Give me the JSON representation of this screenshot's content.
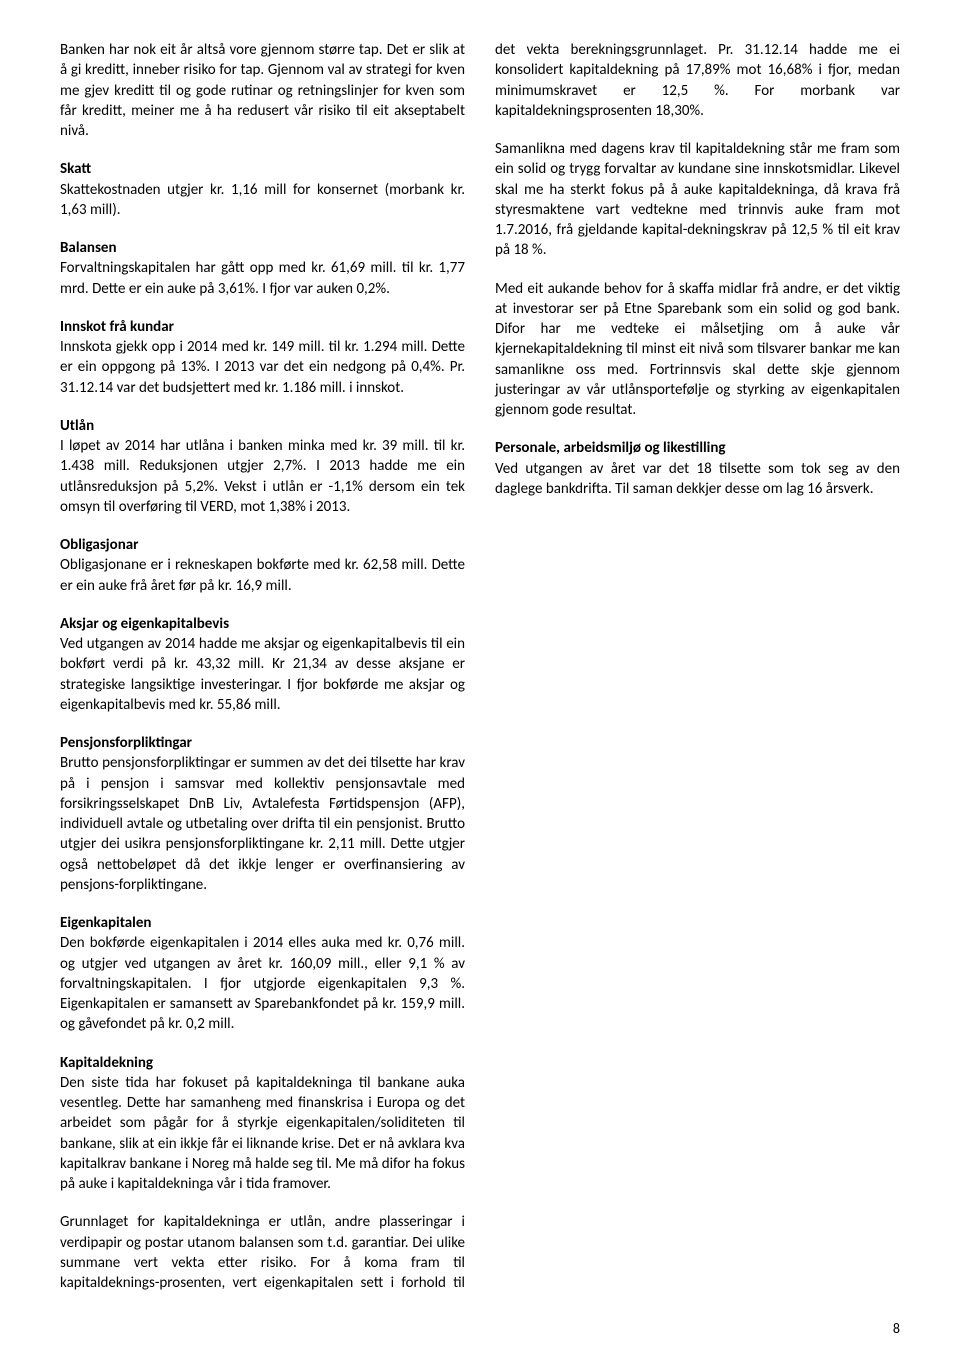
{
  "page_number": "8",
  "sections": {
    "intro": "Banken har nok eit år altså vore gjennom større tap. Det er slik at å gi kreditt, inneber risiko for tap. Gjennom val av strategi for kven me gjev kreditt til og gode rutinar og retningslinjer for kven som får kreditt, meiner me å ha redusert vår risiko til eit akseptabelt nivå.",
    "skatt_h": "Skatt",
    "skatt": "Skattekostnaden utgjer kr. 1,16 mill for konsernet (morbank kr. 1,63 mill).",
    "balansen_h": "Balansen",
    "balansen": "Forvaltningskapitalen har gått opp med kr. 61,69 mill. til kr. 1,77 mrd. Dette er ein auke på 3,61%. I fjor var auken 0,2%.",
    "innskot_h": "Innskot frå kundar",
    "innskot": "Innskota gjekk opp i 2014 med kr. 149 mill. til kr. 1.294 mill. Dette er ein oppgong på 13%. I 2013 var det ein nedgong på 0,4%. Pr. 31.12.14 var det budsjettert med kr. 1.186 mill. i innskot.",
    "utlan_h": "Utlån",
    "utlan": "I løpet av 2014 har utlåna i banken minka med kr. 39 mill. til kr. 1.438 mill. Reduksjonen utgjer 2,7%. I 2013 hadde me ein utlånsreduksjon på 5,2%. Vekst i utlån er -1,1% dersom ein tek omsyn til overføring til VERD, mot 1,38% i 2013.",
    "oblig_h": "Obligasjonar",
    "oblig": "Obligasjonane er i rekneskapen bokførte med kr. 62,58 mill. Dette er ein auke frå året før på kr. 16,9 mill.",
    "aksjar_h": "Aksjar og eigenkapitalbevis",
    "aksjar": "Ved utgangen av 2014 hadde me aksjar og eigenkapitalbevis til ein bokført verdi på kr. 43,32 mill. Kr 21,34 av desse aksjane er strategiske langsiktige investeringar. I fjor bokførde me aksjar og eigenkapitalbevis med kr. 55,86 mill.",
    "pensjon_h": "Pensjonsforpliktingar",
    "pensjon": "Brutto pensjonsforpliktingar er summen av det dei tilsette har krav på i pensjon i samsvar med kollektiv pensjonsavtale med forsikringsselskapet DnB Liv, Avtalefesta Førtidspensjon (AFP), individuell avtale og utbetaling over drifta til ein pensjonist. Brutto utgjer dei usikra pensjonsforpliktingane kr. 2,11 mill. Dette utgjer også nettobeløpet då det ikkje lenger er overfinansiering av pensjons-forpliktingane.",
    "eigen_h": "Eigenkapitalen",
    "eigen": "Den bokførde eigenkapitalen i 2014 elles auka med kr. 0,76 mill. og utgjer ved utgangen av året kr. 160,09 mill., eller 9,1 % av forvaltningskapitalen. I fjor utgjorde eigenkapitalen 9,3 %. Eigenkapitalen er samansett av Sparebankfondet på kr. 159,9 mill. og gåvefondet på kr. 0,2 mill.",
    "kapital_h": "Kapitaldekning",
    "kapital1": "Den siste tida har fokuset på kapitaldekninga til bankane auka vesentleg. Dette har samanheng med finanskrisa i Europa og det arbeidet som pågår for å styrkje eigenkapitalen/soliditeten til bankane, slik at ein ikkje får ei liknande krise. Det er nå avklara kva kapitalkrav bankane i Noreg må halde seg til. Me må difor ha fokus på auke i kapitaldekninga vår i tida framover.",
    "kapital2": "Grunnlaget for kapitaldekninga er utlån, andre plasseringar i verdipapir og postar utanom balansen som t.d. garantiar. Dei ulike summane vert vekta etter risiko. For å koma fram til kapitaldeknings-prosenten, vert eigenkapitalen sett i forhold til det vekta berekningsgrunnlaget. Pr. 31.12.14 hadde me ei konsolidert kapitaldekning på 17,89% mot 16,68% i fjor, medan minimumskravet er 12,5 %. For morbank var kapitaldekningsprosenten 18,30%.",
    "kapital3": "Samanlikna med dagens krav til kapitaldekning står me fram som ein solid og trygg forvaltar av kundane sine innskotsmidlar. Likevel skal me ha sterkt fokus på å auke kapitaldekninga, då krava frå styresmaktene vart vedtekne med trinnvis auke fram mot 1.7.2016, frå gjeldande kapital-dekningskrav på 12,5 % til eit krav på 18 %.",
    "kapital4": "Med eit aukande behov for å skaffa midlar frå andre, er det viktig at investorar ser på Etne Sparebank som ein solid og god bank. Difor har me vedteke ei målsetjing om å auke vår kjernekapitaldekning til minst eit nivå som tilsvarer bankar me kan samanlikne oss med. Fortrinnsvis skal dette skje gjennom justeringar av vår utlånsportefølje og styrking av eigenkapitalen gjennom gode resultat.",
    "personale_h": "Personale, arbeidsmiljø og likestilling",
    "personale": "Ved utgangen av året var det 18 tilsette som tok seg av den daglege bankdrifta. Til saman dekkjer desse om lag 16 årsverk."
  }
}
